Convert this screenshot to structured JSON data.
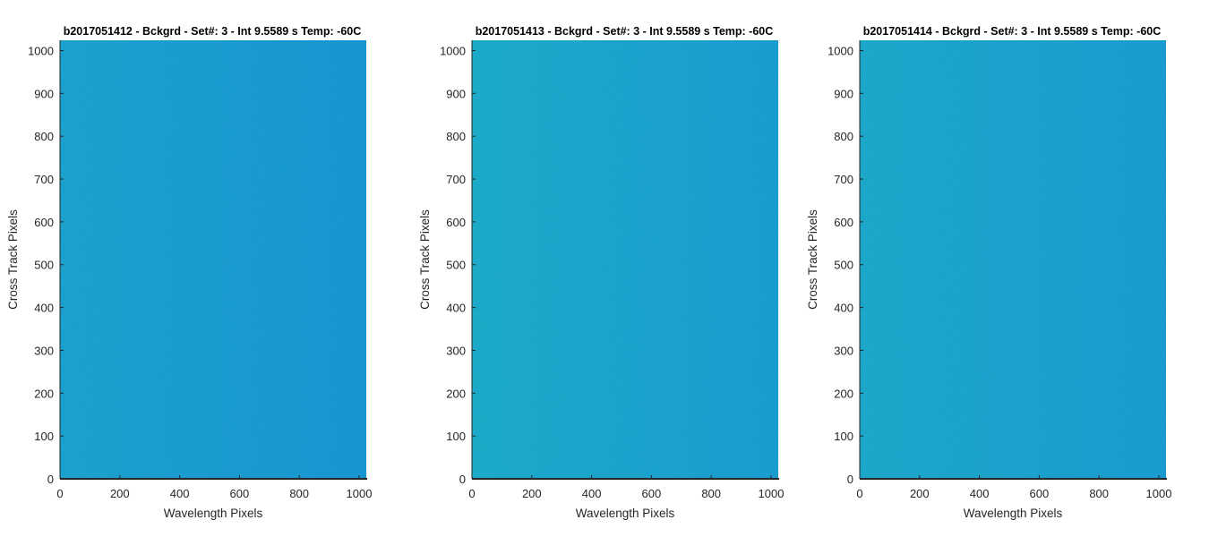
{
  "chart_data": [
    {
      "type": "heatmap",
      "title": "b2017051412 - Bckgrd - Set#: 3 - Int 9.5589 s Temp: -60C",
      "xlabel": "Wavelength Pixels",
      "ylabel": "Cross Track Pixels",
      "xlim": [
        0,
        1024
      ],
      "ylim": [
        0,
        1024
      ],
      "xticks": [
        0,
        200,
        400,
        600,
        800,
        1000
      ],
      "yticks": [
        0,
        100,
        200,
        300,
        400,
        500,
        600,
        700,
        800,
        900,
        1000
      ],
      "colors": {
        "low_x": "#1498c9",
        "high_x": "#0e8ccf"
      }
    },
    {
      "type": "heatmap",
      "title": "b2017051413 - Bckgrd - Set#: 3 - Int 9.5589 s Temp: -60C",
      "xlabel": "Wavelength Pixels",
      "ylabel": "Cross Track Pixels",
      "xlim": [
        0,
        1024
      ],
      "ylim": [
        0,
        1024
      ],
      "xticks": [
        0,
        200,
        400,
        600,
        800,
        1000
      ],
      "yticks": [
        0,
        100,
        200,
        300,
        400,
        500,
        600,
        700,
        800,
        900,
        1000
      ],
      "colors": {
        "low_x": "#14a3c5",
        "high_x": "#1193cc"
      }
    },
    {
      "type": "heatmap",
      "title": "b2017051414 - Bckgrd - Set#: 3 - Int 9.5589 s Temp: -60C",
      "xlabel": "Wavelength Pixels",
      "ylabel": "Cross Track Pixels",
      "xlim": [
        0,
        1024
      ],
      "ylim": [
        0,
        1024
      ],
      "xticks": [
        0,
        200,
        400,
        600,
        800,
        1000
      ],
      "yticks": [
        0,
        100,
        200,
        300,
        400,
        500,
        600,
        700,
        800,
        900,
        1000
      ],
      "colors": {
        "low_x": "#14a0c6",
        "high_x": "#1192cc"
      }
    }
  ]
}
